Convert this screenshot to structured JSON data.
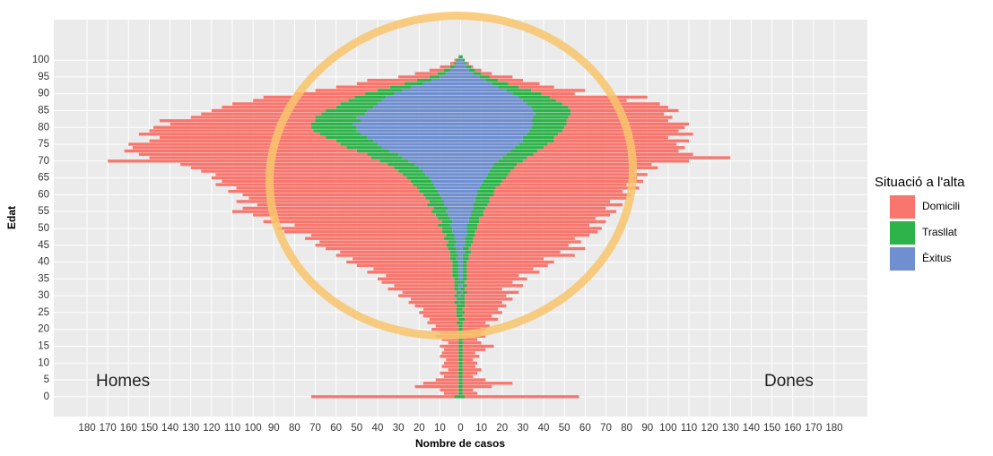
{
  "chart_data": {
    "type": "bar",
    "orientation": "horizontal",
    "x_label": "Nombre de casos",
    "y_label": "Edat",
    "legend_title": "Situació a l'alta",
    "annotations": {
      "homes": "Homes",
      "dones": "Dones"
    },
    "xlim": [
      -196,
      196
    ],
    "ylim": [
      -5.9,
      112
    ],
    "grid": true,
    "legend": "right",
    "xticks": [
      {
        "value": -180,
        "label": "180"
      },
      {
        "value": -170,
        "label": "170"
      },
      {
        "value": -160,
        "label": "160"
      },
      {
        "value": -150,
        "label": "150"
      },
      {
        "value": -140,
        "label": "140"
      },
      {
        "value": -130,
        "label": "130"
      },
      {
        "value": -120,
        "label": "120"
      },
      {
        "value": -110,
        "label": "110"
      },
      {
        "value": -100,
        "label": "100"
      },
      {
        "value": -90,
        "label": "90"
      },
      {
        "value": -80,
        "label": "80"
      },
      {
        "value": -70,
        "label": "70"
      },
      {
        "value": -60,
        "label": "60"
      },
      {
        "value": -50,
        "label": "50"
      },
      {
        "value": -40,
        "label": "40"
      },
      {
        "value": -30,
        "label": "30"
      },
      {
        "value": -20,
        "label": "20"
      },
      {
        "value": -10,
        "label": "10"
      },
      0,
      10,
      20,
      30,
      40,
      50,
      60,
      70,
      80,
      90,
      100,
      110,
      120,
      130,
      140,
      150,
      160,
      170,
      180
    ],
    "yticks": [
      0,
      5,
      10,
      15,
      20,
      25,
      30,
      35,
      40,
      45,
      50,
      55,
      60,
      65,
      70,
      75,
      80,
      85,
      90,
      95,
      100
    ],
    "y": [
      0,
      1,
      2,
      3,
      4,
      5,
      6,
      7,
      8,
      9,
      10,
      11,
      12,
      13,
      14,
      15,
      16,
      17,
      18,
      19,
      20,
      21,
      22,
      23,
      24,
      25,
      26,
      27,
      28,
      29,
      30,
      31,
      32,
      33,
      34,
      35,
      36,
      37,
      38,
      39,
      40,
      41,
      42,
      43,
      44,
      45,
      46,
      47,
      48,
      49,
      50,
      51,
      52,
      53,
      54,
      55,
      56,
      57,
      58,
      59,
      60,
      61,
      62,
      63,
      64,
      65,
      66,
      67,
      68,
      69,
      70,
      71,
      72,
      73,
      74,
      75,
      76,
      77,
      78,
      79,
      80,
      81,
      82,
      83,
      84,
      85,
      86,
      87,
      88,
      89,
      90,
      91,
      92,
      93,
      94,
      95,
      96,
      97,
      98,
      99,
      100,
      101
    ],
    "series": [
      {
        "name": "Domicili",
        "color": "#f8766d",
        "homes": [
          -69,
          -7,
          -9,
          -21,
          -17,
          -11,
          -7,
          -9,
          -5,
          -8,
          -7,
          -6,
          -9,
          -8,
          -7,
          -9,
          -5,
          -8,
          -11,
          -9,
          -13,
          -11,
          -14,
          -14,
          -16,
          -18,
          -16,
          -20,
          -22,
          -22,
          -27,
          -26,
          -32,
          -29,
          -35,
          -37,
          -32,
          -41,
          -38,
          -46,
          -51,
          -47,
          -55,
          -53,
          -59,
          -63,
          -62,
          -67,
          -65,
          -76,
          -79,
          -69,
          -86,
          -79,
          -88,
          -96,
          -92,
          -82,
          -93,
          -85,
          -87,
          -92,
          -87,
          -95,
          -91,
          -94,
          -90,
          -95,
          -98,
          -100,
          -131,
          -107,
          -110,
          -112,
          -103,
          -102,
          -90,
          -80,
          -87,
          -79,
          -76,
          -68,
          -75,
          -60,
          -58,
          -55,
          -55,
          -52,
          -46,
          -44,
          -34,
          -30,
          -26,
          -23,
          -24,
          -15,
          -11,
          -7,
          -5,
          -2,
          -1,
          0
        ],
        "dones": [
          55,
          7,
          5,
          14,
          24,
          11,
          5,
          7,
          9,
          6,
          7,
          5,
          8,
          6,
          11,
          15,
          9,
          7,
          11,
          9,
          11,
          13,
          11,
          16,
          14,
          18,
          17,
          20,
          18,
          23,
          20,
          25,
          18,
          27,
          23,
          29,
          25,
          35,
          32,
          39,
          42,
          36,
          51,
          43,
          56,
          47,
          52,
          49,
          55,
          59,
          60,
          54,
          61,
          56,
          61,
          64,
          58,
          65,
          58,
          66,
          66,
          62,
          69,
          61,
          68,
          63,
          67,
          60,
          69,
          65,
          80,
          98,
          77,
          68,
          68,
          62,
          65,
          55,
          65,
          56,
          58,
          59,
          49,
          50,
          45,
          52,
          48,
          47,
          34,
          47,
          16,
          26,
          17,
          15,
          12,
          11,
          5,
          3,
          1,
          1,
          0,
          0
        ]
      },
      {
        "name": "Trasllat",
        "color": "#2eb34a",
        "homes": [
          -3,
          -1,
          -1,
          -1,
          -1,
          -1,
          -1,
          -1,
          -1,
          -1,
          -1,
          -1,
          -1,
          -1,
          -1,
          -1,
          -1,
          -1,
          -1,
          -1,
          -1,
          -1,
          -2,
          -1,
          -2,
          -2,
          -2,
          -2,
          -2,
          -2,
          -2,
          -2,
          -2,
          -2,
          -3,
          -2,
          -3,
          -3,
          -3,
          -3,
          -3,
          -3,
          -4,
          -3,
          -4,
          -4,
          -4,
          -5,
          -4,
          -5,
          -5,
          -6,
          -5,
          -6,
          -6,
          -7,
          -7,
          -8,
          -7,
          -8,
          -8,
          -9,
          -9,
          -10,
          -10,
          -11,
          -11,
          -12,
          -12,
          -13,
          -14,
          -15,
          -15,
          -16,
          -17,
          -18,
          -18,
          -20,
          -20,
          -21,
          -22,
          -20,
          -22,
          -20,
          -21,
          -20,
          -18,
          -18,
          -16,
          -15,
          -14,
          -12,
          -10,
          -9,
          -7,
          -5,
          -4,
          -3,
          -2,
          -1,
          -1,
          -1
        ],
        "dones": [
          2,
          1,
          1,
          1,
          1,
          1,
          1,
          1,
          1,
          1,
          1,
          1,
          1,
          1,
          1,
          1,
          1,
          1,
          1,
          1,
          1,
          1,
          1,
          2,
          1,
          2,
          1,
          2,
          2,
          2,
          2,
          2,
          2,
          2,
          2,
          2,
          2,
          2,
          2,
          2,
          2,
          3,
          3,
          3,
          3,
          3,
          4,
          4,
          4,
          4,
          5,
          5,
          5,
          5,
          6,
          6,
          6,
          7,
          7,
          7,
          8,
          8,
          8,
          9,
          9,
          10,
          10,
          10,
          11,
          11,
          12,
          12,
          13,
          13,
          14,
          14,
          15,
          15,
          15,
          16,
          16,
          16,
          17,
          17,
          17,
          18,
          18,
          17,
          16,
          15,
          14,
          12,
          10,
          8,
          6,
          5,
          4,
          3,
          2,
          1,
          1,
          1
        ]
      },
      {
        "name": "Èxitus",
        "color": "#6f8fd0",
        "homes": [
          0,
          0,
          0,
          0,
          0,
          0,
          0,
          0,
          0,
          0,
          0,
          0,
          0,
          0,
          0,
          0,
          0,
          0,
          0,
          0,
          0,
          0,
          0,
          0,
          0,
          0,
          0,
          0,
          -1,
          0,
          -1,
          0,
          -1,
          -1,
          0,
          -1,
          -1,
          -1,
          -1,
          -1,
          -1,
          -2,
          -1,
          -2,
          -2,
          -3,
          -2,
          -3,
          -3,
          -4,
          -4,
          -5,
          -4,
          -5,
          -6,
          -7,
          -6,
          -8,
          -8,
          -9,
          -10,
          -11,
          -12,
          -13,
          -14,
          -15,
          -17,
          -18,
          -20,
          -22,
          -25,
          -28,
          -30,
          -34,
          -38,
          -40,
          -42,
          -45,
          -48,
          -50,
          -50,
          -52,
          -48,
          -50,
          -46,
          -45,
          -42,
          -40,
          -38,
          -36,
          -32,
          -28,
          -24,
          -18,
          -14,
          -10,
          -7,
          -5,
          -3,
          -2,
          -1,
          0
        ],
        "dones": [
          0,
          0,
          0,
          0,
          0,
          0,
          0,
          0,
          0,
          0,
          0,
          0,
          0,
          0,
          0,
          0,
          0,
          0,
          0,
          0,
          0,
          0,
          0,
          0,
          0,
          0,
          0,
          0,
          0,
          0,
          0,
          1,
          0,
          1,
          0,
          1,
          1,
          1,
          1,
          1,
          1,
          1,
          1,
          2,
          1,
          2,
          2,
          2,
          3,
          3,
          3,
          3,
          4,
          4,
          5,
          5,
          6,
          6,
          7,
          7,
          8,
          8,
          9,
          10,
          11,
          12,
          13,
          14,
          15,
          16,
          18,
          20,
          22,
          24,
          26,
          28,
          30,
          30,
          32,
          33,
          34,
          35,
          34,
          35,
          36,
          35,
          34,
          32,
          30,
          28,
          25,
          22,
          18,
          15,
          12,
          9,
          6,
          4,
          3,
          2,
          1,
          0
        ]
      }
    ]
  }
}
